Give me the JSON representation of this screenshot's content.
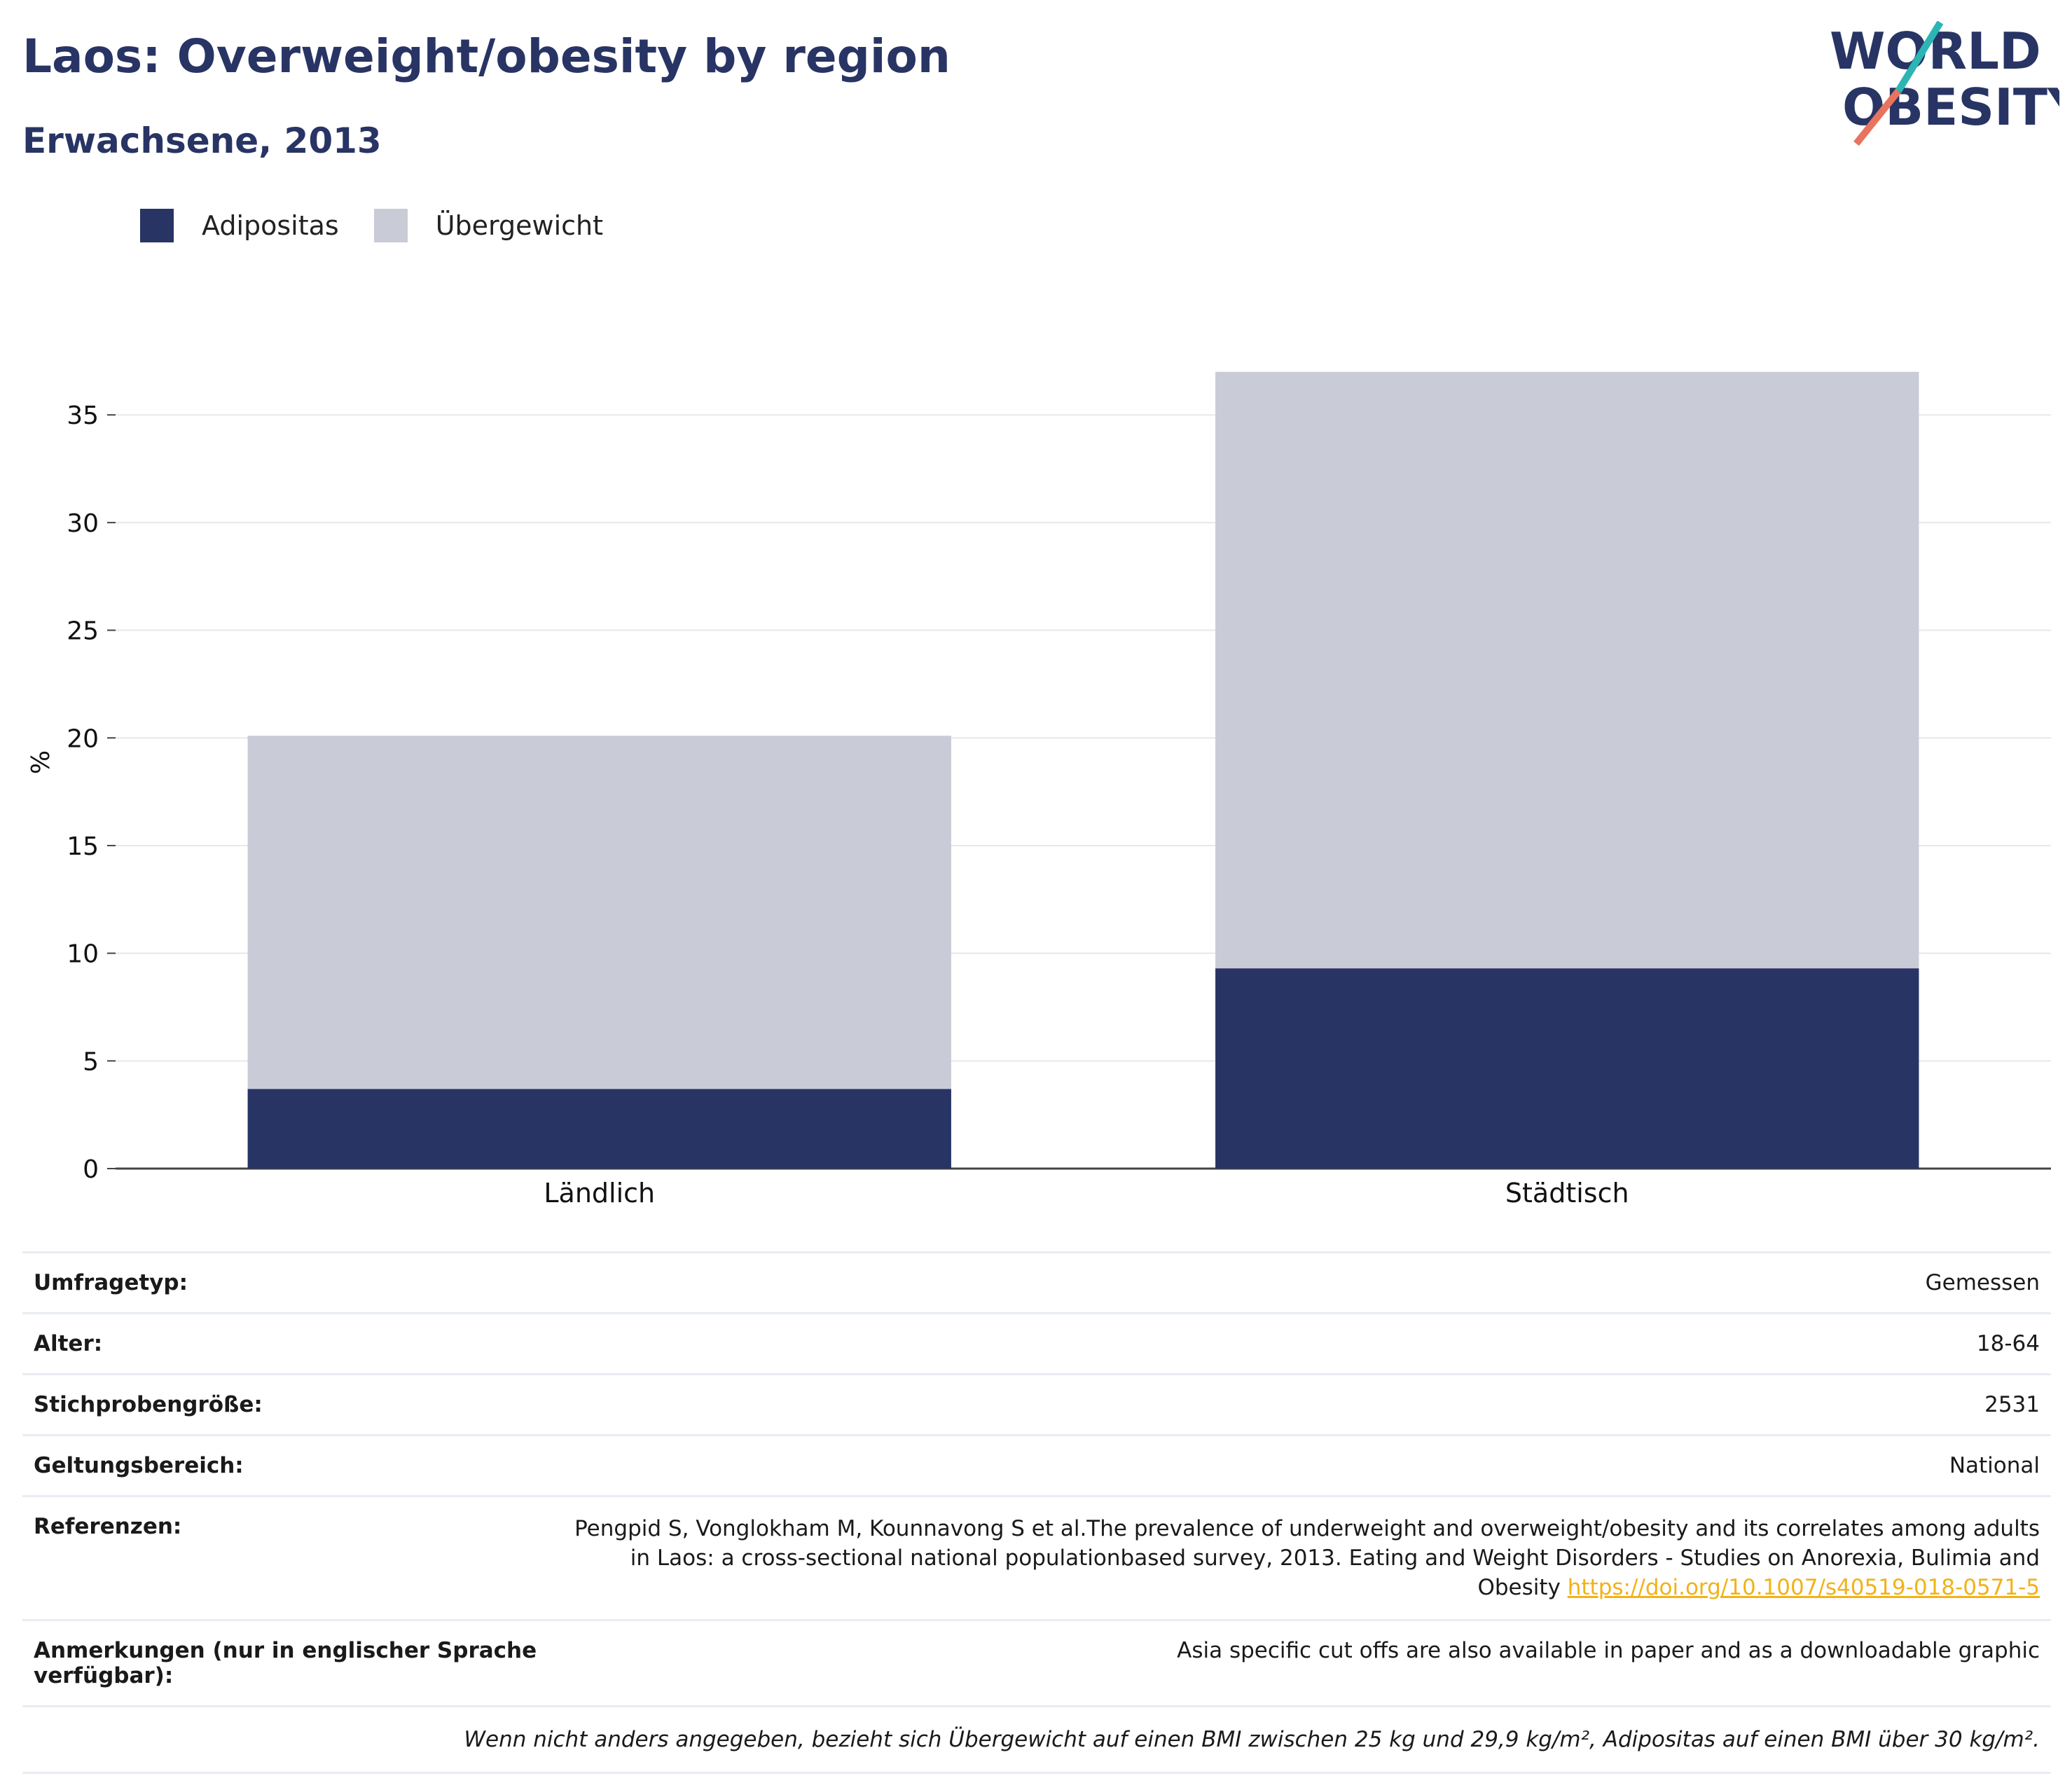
{
  "header": {
    "title": "Laos: Overweight/obesity by region",
    "subtitle": "Erwachsene, 2013"
  },
  "logo": {
    "line1": "WORLD",
    "line2": "OBESITY"
  },
  "colors": {
    "obesity": "#283464",
    "overweight": "#c9cbd6",
    "accent_teal": "#2bb5b5",
    "accent_coral": "#e8735e"
  },
  "chart_data": {
    "type": "bar",
    "stacked": true,
    "categories": [
      "Ländlich",
      "Städtisch"
    ],
    "series": [
      {
        "name": "Adipositas",
        "values": [
          3.7,
          9.3
        ]
      },
      {
        "name": "Übergewicht",
        "values": [
          16.4,
          27.7
        ]
      }
    ],
    "ylabel": "%",
    "ylim": [
      0,
      38
    ],
    "yticks": [
      0,
      5,
      10,
      15,
      20,
      25,
      30,
      35
    ],
    "grid": true,
    "legend": "top-left"
  },
  "info": {
    "survey_type": {
      "label": "Umfragetyp:",
      "value": "Gemessen"
    },
    "age": {
      "label": "Alter:",
      "value": "18-64"
    },
    "sample_size": {
      "label": "Stichprobengröße:",
      "value": "2531"
    },
    "scope": {
      "label": "Geltungsbereich:",
      "value": "National"
    },
    "references": {
      "label": "Referenzen:",
      "value": "Pengpid S, Vonglokham M, Kounnavong S et al.The prevalence of underweight and overweight/obesity and its correlates among adults in Laos: a cross-sectional national populationbased survey, 2013. Eating and Weight Disorders - Studies on Anorexia, Bulimia and Obesity",
      "link": "https://doi.org/10.1007/s40519-018-0571-5"
    },
    "notes": {
      "label": "Anmerkungen (nur in englischer Sprache verfügbar):",
      "value": "Asia specific cut offs are also available in paper and as a downloadable graphic"
    },
    "footnote": "Wenn nicht anders angegeben, bezieht sich Übergewicht auf einen BMI zwischen 25 kg und 29,9 kg/m², Adipositas auf einen BMI über 30 kg/m²."
  }
}
